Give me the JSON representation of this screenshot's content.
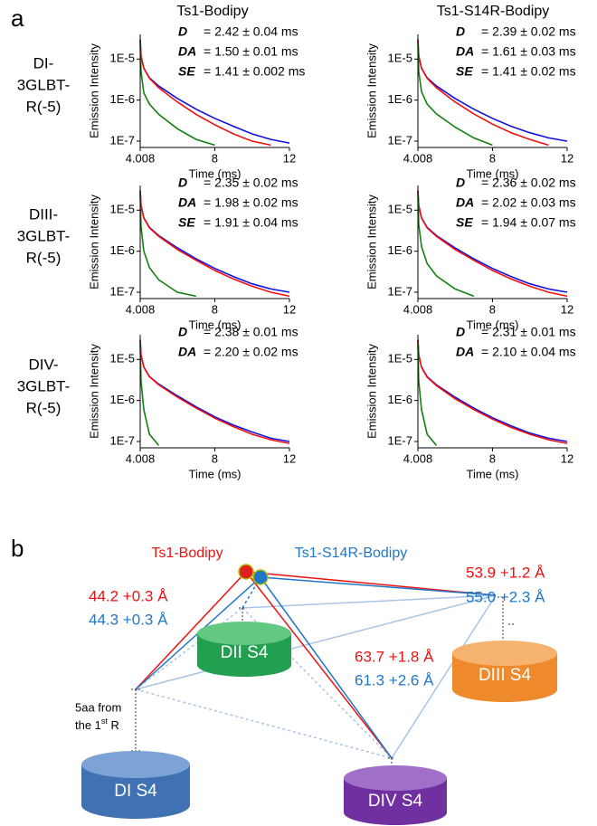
{
  "panel_a": {
    "label": "a",
    "columns": [
      "Ts1-Bodipy",
      "Ts1-S14R-Bodipy"
    ],
    "rows": [
      [
        "DI-",
        "3GLBT-",
        "R(-5)"
      ],
      [
        "DIII-",
        "3GLBT-",
        "R(-5)"
      ],
      [
        "DIV-",
        "3GLBT-",
        "R(-5)"
      ]
    ]
  },
  "chart_data": [
    {
      "type": "line",
      "xlabel": "Time (ms)",
      "ylabel": "Emission Intensity",
      "log_y": true,
      "xlim": [
        4.008,
        12
      ],
      "xticks": [
        4.008,
        8,
        12
      ],
      "ylim": [
        7e-08,
        4e-05
      ],
      "yticks": [
        {
          "value": 1e-07,
          "label": "1E-7"
        },
        {
          "value": 1e-06,
          "label": "1E-6"
        },
        {
          "value": 1e-05,
          "label": "1E-5"
        }
      ],
      "x": [
        4.008,
        4.05,
        4.2,
        4.5,
        5,
        6,
        7,
        8,
        9,
        10,
        11,
        12
      ],
      "annotations": [
        {
          "label": "D",
          "text": "= 2.42 ± 0.04 ms"
        },
        {
          "label": "DA",
          "text": "= 1.50 ± 0.01 ms"
        },
        {
          "label": "SE",
          "text": "= 1.41 ± 0.002 ms"
        }
      ],
      "series": [
        {
          "name": "D",
          "color": "#1010e0",
          "values": [
            3e-05,
            1.2e-05,
            6e-06,
            3.5e-06,
            2.2e-06,
            1.1e-06,
            6e-07,
            3.6e-07,
            2.3e-07,
            1.5e-07,
            1.1e-07,
            9e-08
          ]
        },
        {
          "name": "DA",
          "color": "#f01010",
          "values": [
            3e-05,
            1.2e-05,
            6e-06,
            3.4e-06,
            2e-06,
            9e-07,
            4.5e-07,
            2.5e-07,
            1.5e-07,
            1e-07,
            8e-08,
            null
          ]
        },
        {
          "name": "SE",
          "color": "#108010",
          "values": [
            2.5e-05,
            5e-06,
            1.5e-06,
            8e-07,
            4.5e-07,
            2e-07,
            1.1e-07,
            8e-08,
            null,
            null,
            null,
            null
          ]
        }
      ]
    },
    {
      "type": "line",
      "xlabel": "Time (ms)",
      "ylabel": "Emission Intensity",
      "log_y": true,
      "xlim": [
        4.008,
        12
      ],
      "xticks": [
        4.008,
        8,
        12
      ],
      "ylim": [
        7e-08,
        4e-05
      ],
      "yticks": [
        {
          "value": 1e-07,
          "label": "1E-7"
        },
        {
          "value": 1e-06,
          "label": "1E-6"
        },
        {
          "value": 1e-05,
          "label": "1E-5"
        }
      ],
      "x": [
        4.008,
        4.05,
        4.2,
        4.5,
        5,
        6,
        7,
        8,
        9,
        10,
        11,
        12
      ],
      "annotations": [
        {
          "label": "D",
          "text": "= 2.39 ± 0.02 ms"
        },
        {
          "label": "DA",
          "text": "= 1.61 ± 0.03 ms"
        },
        {
          "label": "SE",
          "text": "= 1.41 ± 0.02 ms"
        }
      ],
      "series": [
        {
          "name": "D",
          "color": "#1010e0",
          "values": [
            3e-05,
            1.2e-05,
            6e-06,
            3.5e-06,
            2.2e-06,
            1.1e-06,
            6e-07,
            3.6e-07,
            2.3e-07,
            1.6e-07,
            1.2e-07,
            1e-07
          ]
        },
        {
          "name": "DA",
          "color": "#f01010",
          "values": [
            3e-05,
            1.2e-05,
            6e-06,
            3.4e-06,
            2e-06,
            9e-07,
            4.6e-07,
            2.6e-07,
            1.6e-07,
            1.1e-07,
            8e-08,
            null
          ]
        },
        {
          "name": "SE",
          "color": "#108010",
          "values": [
            2.5e-05,
            5e-06,
            1.6e-06,
            8e-07,
            4.6e-07,
            2.2e-07,
            1.2e-07,
            8e-08,
            null,
            null,
            null,
            null
          ]
        }
      ]
    },
    {
      "type": "line",
      "xlabel": "Time (ms)",
      "ylabel": "Emission Intensity",
      "log_y": true,
      "xlim": [
        4.008,
        12
      ],
      "xticks": [
        4.008,
        8,
        12
      ],
      "ylim": [
        7e-08,
        4e-05
      ],
      "yticks": [
        {
          "value": 1e-07,
          "label": "1E-7"
        },
        {
          "value": 1e-06,
          "label": "1E-6"
        },
        {
          "value": 1e-05,
          "label": "1E-5"
        }
      ],
      "x": [
        4.008,
        4.05,
        4.2,
        4.5,
        5,
        6,
        7,
        8,
        9,
        10,
        11,
        12
      ],
      "annotations": [
        {
          "label": "D",
          "text": "= 2.35 ± 0.02 ms"
        },
        {
          "label": "DA",
          "text": "= 1.98 ± 0.02 ms"
        },
        {
          "label": "SE",
          "text": "= 1.91 ± 0.04 ms"
        }
      ],
      "series": [
        {
          "name": "D",
          "color": "#1010e0",
          "values": [
            3e-05,
            1.3e-05,
            6.5e-06,
            3.8e-06,
            2.4e-06,
            1.2e-06,
            6.5e-07,
            3.8e-07,
            2.4e-07,
            1.6e-07,
            1.2e-07,
            1e-07
          ]
        },
        {
          "name": "DA",
          "color": "#f01010",
          "values": [
            3e-05,
            1.3e-05,
            6.4e-06,
            3.7e-06,
            2.3e-06,
            1.1e-06,
            6e-07,
            3.4e-07,
            2.1e-07,
            1.4e-07,
            1e-07,
            8e-08
          ]
        },
        {
          "name": "SE",
          "color": "#108010",
          "values": [
            2.5e-05,
            4e-06,
            1e-06,
            4e-07,
            2e-07,
            1e-07,
            8e-08,
            null,
            null,
            null,
            null,
            null
          ]
        }
      ]
    },
    {
      "type": "line",
      "xlabel": "Time (ms)",
      "ylabel": "Emission Intensity",
      "log_y": true,
      "xlim": [
        4.008,
        12
      ],
      "xticks": [
        4.008,
        8,
        12
      ],
      "ylim": [
        7e-08,
        4e-05
      ],
      "yticks": [
        {
          "value": 1e-07,
          "label": "1E-7"
        },
        {
          "value": 1e-06,
          "label": "1E-6"
        },
        {
          "value": 1e-05,
          "label": "1E-5"
        }
      ],
      "x": [
        4.008,
        4.05,
        4.2,
        4.5,
        5,
        6,
        7,
        8,
        9,
        10,
        11,
        12
      ],
      "annotations": [
        {
          "label": "D",
          "text": "= 2.36 ± 0.02 ms"
        },
        {
          "label": "DA",
          "text": "= 2.02 ± 0.03 ms"
        },
        {
          "label": "SE",
          "text": "= 1.94 ± 0.07 ms"
        }
      ],
      "series": [
        {
          "name": "D",
          "color": "#1010e0",
          "values": [
            3e-05,
            1.3e-05,
            6.5e-06,
            3.8e-06,
            2.4e-06,
            1.2e-06,
            6.5e-07,
            3.8e-07,
            2.4e-07,
            1.6e-07,
            1.2e-07,
            1e-07
          ]
        },
        {
          "name": "DA",
          "color": "#f01010",
          "values": [
            3e-05,
            1.3e-05,
            6.4e-06,
            3.7e-06,
            2.3e-06,
            1.1e-06,
            6e-07,
            3.4e-07,
            2.1e-07,
            1.4e-07,
            1e-07,
            8e-08
          ]
        },
        {
          "name": "SE",
          "color": "#108010",
          "values": [
            2.5e-05,
            4.5e-06,
            1.3e-06,
            5e-07,
            2.5e-07,
            1.2e-07,
            8e-08,
            null,
            null,
            null,
            null,
            null
          ]
        }
      ]
    },
    {
      "type": "line",
      "xlabel": "Time (ms)",
      "ylabel": "Emission Intensity",
      "log_y": true,
      "xlim": [
        4.008,
        12
      ],
      "xticks": [
        4.008,
        8,
        12
      ],
      "ylim": [
        7e-08,
        4e-05
      ],
      "yticks": [
        {
          "value": 1e-07,
          "label": "1E-7"
        },
        {
          "value": 1e-06,
          "label": "1E-6"
        },
        {
          "value": 1e-05,
          "label": "1E-5"
        }
      ],
      "x": [
        4.008,
        4.05,
        4.2,
        4.5,
        5,
        6,
        7,
        8,
        9,
        10,
        11,
        12
      ],
      "annotations": [
        {
          "label": "D",
          "text": "= 2.38 ± 0.01 ms"
        },
        {
          "label": "DA",
          "text": "= 2.20 ± 0.02 ms"
        }
      ],
      "series": [
        {
          "name": "D",
          "color": "#1010e0",
          "values": [
            3e-05,
            1.3e-05,
            6.5e-06,
            3.8e-06,
            2.5e-06,
            1.3e-06,
            7e-07,
            4e-07,
            2.5e-07,
            1.7e-07,
            1.2e-07,
            1e-07
          ]
        },
        {
          "name": "DA",
          "color": "#f01010",
          "values": [
            3e-05,
            1.3e-05,
            6.5e-06,
            3.8e-06,
            2.4e-06,
            1.2e-06,
            6.5e-07,
            3.7e-07,
            2.3e-07,
            1.5e-07,
            1.1e-07,
            9e-08
          ]
        },
        {
          "color": "#108010",
          "values": [
            2.5e-05,
            3e-06,
            6e-07,
            1.5e-07,
            8e-08,
            null,
            null,
            null,
            null,
            null,
            null,
            null
          ]
        }
      ]
    },
    {
      "type": "line",
      "xlabel": "Time (ms)",
      "ylabel": "Emission Intensity",
      "log_y": true,
      "xlim": [
        4.008,
        12
      ],
      "xticks": [
        4.008,
        8,
        12
      ],
      "ylim": [
        7e-08,
        4e-05
      ],
      "yticks": [
        {
          "value": 1e-07,
          "label": "1E-7"
        },
        {
          "value": 1e-06,
          "label": "1E-6"
        },
        {
          "value": 1e-05,
          "label": "1E-5"
        }
      ],
      "x": [
        4.008,
        4.05,
        4.2,
        4.5,
        5,
        6,
        7,
        8,
        9,
        10,
        11,
        12
      ],
      "annotations": [
        {
          "label": "D",
          "text": "= 2.31 ± 0.01 ms"
        },
        {
          "label": "DA",
          "text": "= 2.10 ± 0.04 ms"
        }
      ],
      "series": [
        {
          "name": "D",
          "color": "#1010e0",
          "values": [
            3e-05,
            1.3e-05,
            6.5e-06,
            3.8e-06,
            2.4e-06,
            1.2e-06,
            6.5e-07,
            3.8e-07,
            2.4e-07,
            1.6e-07,
            1.2e-07,
            1e-07
          ]
        },
        {
          "name": "DA",
          "color": "#f01010",
          "values": [
            3e-05,
            1.3e-05,
            6.4e-06,
            3.7e-06,
            2.3e-06,
            1.1e-06,
            6e-07,
            3.5e-07,
            2.2e-07,
            1.5e-07,
            1.1e-07,
            9e-08
          ]
        },
        {
          "color": "#108010",
          "values": [
            2.5e-05,
            3e-06,
            6e-07,
            1.5e-07,
            8e-08,
            null,
            null,
            null,
            null,
            null,
            null,
            null
          ]
        }
      ]
    }
  ],
  "panel_b": {
    "label": "b",
    "probes": [
      "Ts1-Bodipy",
      "Ts1-S14R-Bodipy"
    ],
    "distances": [
      [
        "44.2 +0.3 Å",
        "44.3 +0.3 Å"
      ],
      [
        "53.9 +1.2 Å",
        "55.0 +2.3 Å"
      ],
      [
        "63.7 +1.8 Å",
        "61.3 +2.6 Å"
      ]
    ],
    "domains": [
      "DI S4",
      "DII S4",
      "DIII S4",
      "DIV S4"
    ],
    "note": {
      "line1": "5aa from",
      "line2": "the 1",
      "sup": "st",
      "rest": " R"
    }
  }
}
